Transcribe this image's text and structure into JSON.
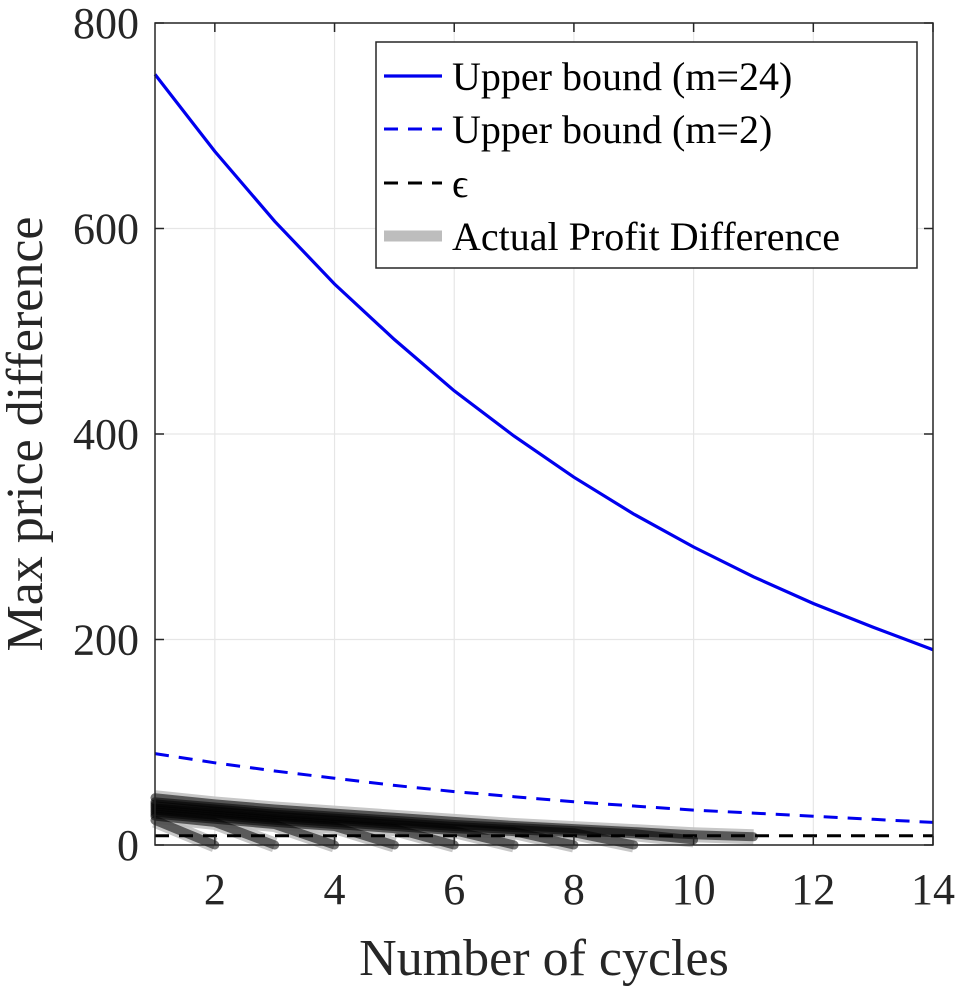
{
  "chart_data": {
    "type": "line",
    "xlabel": "Number of cycles",
    "ylabel": "Max price difference",
    "xlim": [
      1,
      14
    ],
    "ylim": [
      0,
      800
    ],
    "xticks": [
      2,
      4,
      6,
      8,
      10,
      12,
      14
    ],
    "xtick_labels": [
      "2",
      "4",
      "6",
      "8",
      "10",
      "12",
      "14"
    ],
    "yticks": [
      0,
      200,
      400,
      600,
      800
    ],
    "ytick_labels": [
      "0",
      "200",
      "400",
      "600",
      "800"
    ],
    "grid": true,
    "legend_position": "top-right",
    "colors": {
      "upper24": "#0000ee",
      "upper2": "#0000ee",
      "epsilon": "#000000",
      "actual": "#bdbdbd",
      "actual_dark": "#000000"
    },
    "series": [
      {
        "name": "Upper bound (m=24)",
        "style": "solid",
        "x": [
          1,
          2,
          3,
          4,
          5,
          6,
          7,
          8,
          9,
          10,
          11,
          12,
          13,
          14
        ],
        "y": [
          750,
          675,
          607,
          546,
          492,
          442,
          398,
          358,
          322,
          290,
          261,
          235,
          212,
          190
        ]
      },
      {
        "name": "Upper bound (m=2)",
        "style": "dashed",
        "x": [
          1,
          2,
          3,
          4,
          5,
          6,
          7,
          8,
          9,
          10,
          11,
          12,
          13,
          14
        ],
        "y": [
          89,
          80,
          72,
          65,
          58,
          52,
          47,
          42,
          38,
          34,
          31,
          28,
          25,
          22
        ]
      },
      {
        "name": "ϵ",
        "style": "dashed",
        "x": [
          1,
          14
        ],
        "y": [
          9,
          9
        ]
      },
      {
        "name": "Actual Profit Difference",
        "style": "thick-translucent",
        "runs": [
          {
            "x": [
              1,
              2
            ],
            "y": [
              24,
              0
            ]
          },
          {
            "x": [
              1,
              2,
              3
            ],
            "y": [
              28,
              22,
              0
            ]
          },
          {
            "x": [
              1,
              2,
              3,
              4
            ],
            "y": [
              30,
              25,
              20,
              0
            ]
          },
          {
            "x": [
              1,
              2,
              3,
              4,
              5
            ],
            "y": [
              32,
              27,
              22,
              18,
              0
            ]
          },
          {
            "x": [
              1,
              2,
              3,
              4,
              5,
              6
            ],
            "y": [
              34,
              29,
              24,
              20,
              16,
              0
            ]
          },
          {
            "x": [
              1,
              2,
              3,
              4,
              5,
              6,
              7
            ],
            "y": [
              36,
              31,
              26,
              22,
              18,
              14,
              0
            ]
          },
          {
            "x": [
              1,
              2,
              3,
              4,
              5,
              6,
              7,
              8
            ],
            "y": [
              38,
              33,
              28,
              24,
              20,
              16,
              13,
              0
            ]
          },
          {
            "x": [
              1,
              2,
              3,
              4,
              5,
              6,
              7,
              8,
              9
            ],
            "y": [
              40,
              35,
              30,
              26,
              22,
              18,
              15,
              12,
              0
            ]
          },
          {
            "x": [
              1,
              2,
              3,
              4,
              5,
              6,
              7,
              8,
              9,
              10
            ],
            "y": [
              42,
              37,
              32,
              28,
              24,
              20,
              17,
              14,
              11,
              5
            ]
          },
          {
            "x": [
              1,
              2,
              3,
              4,
              5,
              6,
              7,
              8,
              9,
              10,
              11
            ],
            "y": [
              46,
              40,
              35,
              31,
              27,
              23,
              19,
              16,
              13,
              10,
              8
            ]
          }
        ]
      }
    ]
  },
  "legend": {
    "items": [
      {
        "label": "Upper bound (m=24)",
        "style": "solid",
        "color": "#0000ee"
      },
      {
        "label": "Upper bound (m=2)",
        "style": "dashed",
        "color": "#0000ee"
      },
      {
        "label": "ϵ",
        "style": "dashed",
        "color": "#000000"
      },
      {
        "label": "Actual Profit Difference",
        "style": "thick",
        "color": "#bdbdbd"
      }
    ]
  }
}
